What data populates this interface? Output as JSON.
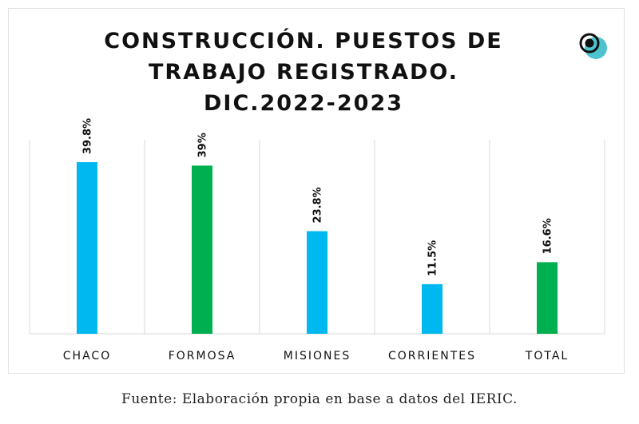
{
  "chart_data": {
    "type": "bar",
    "title": "CONSTRUCCIÓN. PUESTOS DE TRABAJO REGISTRADO. DIC.2022-2023",
    "categories": [
      "CHACO",
      "FORMOSA",
      "MISIONES",
      "CORRIENTES",
      "TOTAL"
    ],
    "values": [
      39.8,
      39,
      23.8,
      11.5,
      16.6
    ],
    "data_labels": [
      "39.8%",
      "39%",
      "23.8%",
      "11.5%",
      "16.6%"
    ],
    "colors": [
      "#00B8F0",
      "#00B050",
      "#00B8F0",
      "#00B8F0",
      "#00B050"
    ],
    "xlabel": "",
    "ylabel": "",
    "ylim": [
      0,
      45
    ],
    "grid": "vertical separators",
    "legend": "none"
  },
  "logo": {
    "icon": "circle-logo-icon",
    "colors": [
      "#111111",
      "#4EC3D0"
    ]
  },
  "source": "Fuente: Elaboración propia en base a datos del IERIC."
}
